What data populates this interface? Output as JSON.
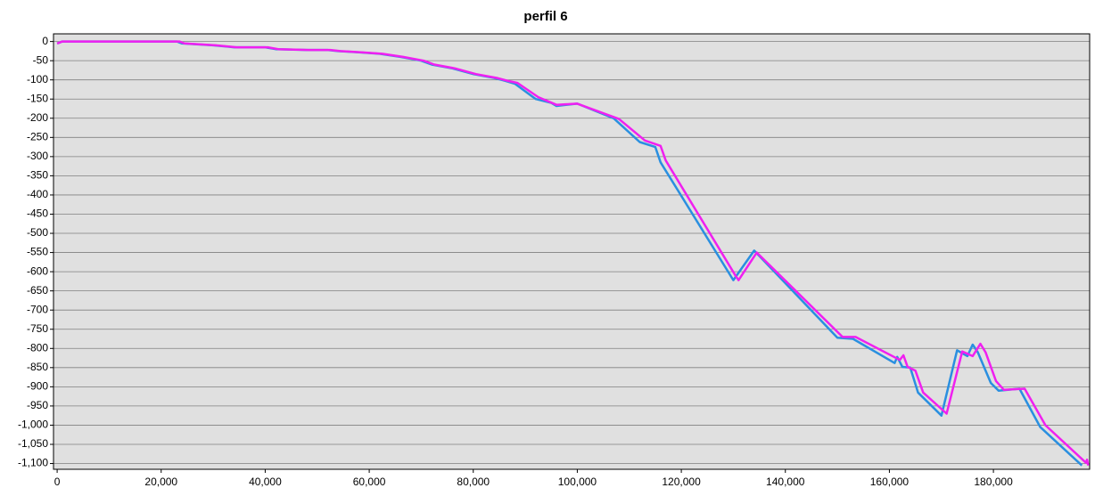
{
  "chart_data": {
    "type": "line",
    "title": "perfil 6",
    "xlim": [
      -700,
      198500
    ],
    "ylim": [
      -1115,
      20
    ],
    "grid": true,
    "background": "#e0e0e0",
    "xticks": [
      0,
      {
        "value": 20000,
        "label": "20,000"
      },
      {
        "value": 40000,
        "label": "40,000"
      },
      {
        "value": 60000,
        "label": "60,000"
      },
      {
        "value": 80000,
        "label": "80,000"
      },
      {
        "value": 100000,
        "label": "100,000"
      },
      {
        "value": 120000,
        "label": "120,000"
      },
      {
        "value": 140000,
        "label": "140,000"
      },
      {
        "value": 160000,
        "label": "160,000"
      },
      {
        "value": 180000,
        "label": "180,000"
      }
    ],
    "yticks": [
      0,
      -50,
      -100,
      -150,
      -200,
      -250,
      -300,
      -350,
      -400,
      -450,
      -500,
      -550,
      -600,
      -650,
      -700,
      -750,
      -800,
      -850,
      -900,
      -950,
      {
        "value": -1000,
        "label": "-1,000"
      },
      {
        "value": -1050,
        "label": "-1,050"
      },
      {
        "value": -1100,
        "label": "-1,100"
      }
    ],
    "series": [
      {
        "color": "#2a8fe0",
        "x": [
          0,
          1000,
          23000,
          24000,
          30000,
          34000,
          40000,
          42000,
          48000,
          52000,
          54000,
          58000,
          62000,
          66000,
          70000,
          72000,
          76000,
          80000,
          84000,
          86000,
          88000,
          92000,
          95000,
          96000,
          100000,
          107000,
          112000,
          115000,
          116000,
          130000,
          134000,
          150000,
          153000,
          161000,
          161500,
          162500,
          164000,
          165500,
          170000,
          173000,
          175000,
          176000,
          177000,
          179500,
          181000,
          185000,
          189000,
          197000
        ],
        "values": [
          -5,
          0,
          0,
          -5,
          -10,
          -15,
          -15,
          -20,
          -22,
          -22,
          -25,
          -28,
          -32,
          -40,
          -50,
          -60,
          -70,
          -85,
          -95,
          -102,
          -110,
          -150,
          -160,
          -168,
          -162,
          -200,
          -262,
          -275,
          -315,
          -622,
          -545,
          -772,
          -775,
          -838,
          -822,
          -848,
          -850,
          -915,
          -975,
          -805,
          -820,
          -790,
          -810,
          -890,
          -910,
          -905,
          -1005,
          -1105
        ]
      },
      {
        "color": "#f020f0",
        "x": [
          0,
          1000,
          23500,
          24500,
          30500,
          34500,
          40500,
          42500,
          48500,
          52500,
          54500,
          58500,
          62500,
          66500,
          70500,
          72500,
          76500,
          80500,
          84500,
          86500,
          88500,
          92500,
          96000,
          100000,
          108000,
          113000,
          116000,
          117000,
          130500,
          131000,
          134500,
          151000,
          153500,
          162000,
          162700,
          163500,
          165000,
          166500,
          171000,
          174000,
          176000,
          177500,
          178500,
          180500,
          182000,
          186000,
          190000,
          197800,
          198000,
          198200
        ],
        "values": [
          -5,
          0,
          0,
          -5,
          -10,
          -15,
          -15,
          -20,
          -22,
          -22,
          -25,
          -28,
          -32,
          -40,
          -50,
          -60,
          -70,
          -85,
          -95,
          -102,
          -108,
          -145,
          -165,
          -162,
          -202,
          -258,
          -272,
          -310,
          -612,
          -622,
          -550,
          -770,
          -770,
          -830,
          -818,
          -848,
          -858,
          -915,
          -970,
          -808,
          -820,
          -788,
          -810,
          -885,
          -908,
          -905,
          -1000,
          -1098,
          -1090,
          -1105
        ]
      }
    ]
  }
}
